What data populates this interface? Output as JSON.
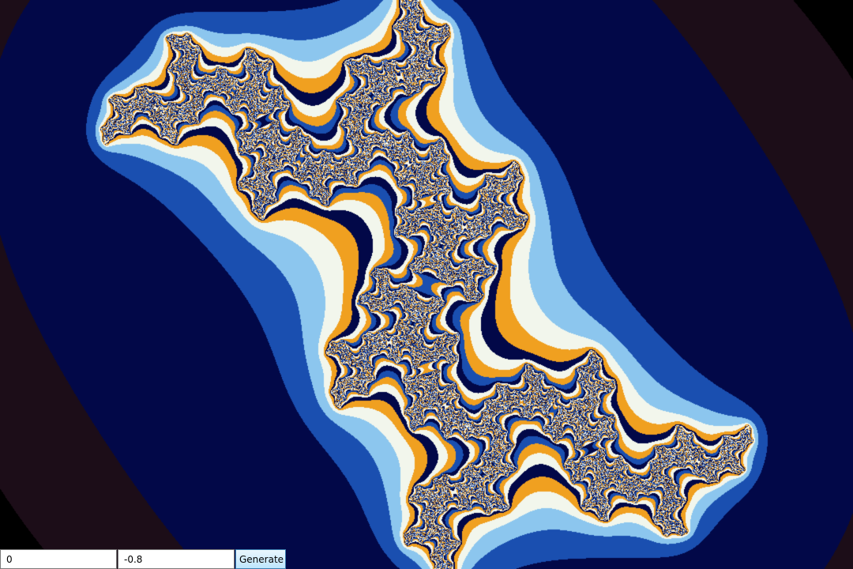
{
  "fractal": {
    "type": "julia-set",
    "c_real": 0,
    "c_imag": -0.8,
    "colors": {
      "background": "#000000",
      "outer_halo": "#1c0d18",
      "deep_navy": "#020848",
      "blue": "#1a4fb0",
      "light_blue": "#8cc6ee",
      "pale": "#f2f6ec",
      "orange": "#f0a020",
      "dark_orange": "#b06000"
    }
  },
  "controls": {
    "real_value": "0",
    "imag_value": "-0.8",
    "generate_label": "Generate"
  }
}
